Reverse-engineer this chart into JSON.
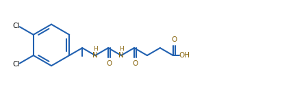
{
  "line_color": "#2060b0",
  "text_color": "#000000",
  "hetero_color": "#8B6914",
  "bg_color": "#ffffff",
  "line_width": 1.5,
  "font_size": 7.5,
  "font_size_small": 6.5,
  "xlim": [
    0.0,
    10.5
  ],
  "ylim": [
    0.0,
    3.2
  ]
}
